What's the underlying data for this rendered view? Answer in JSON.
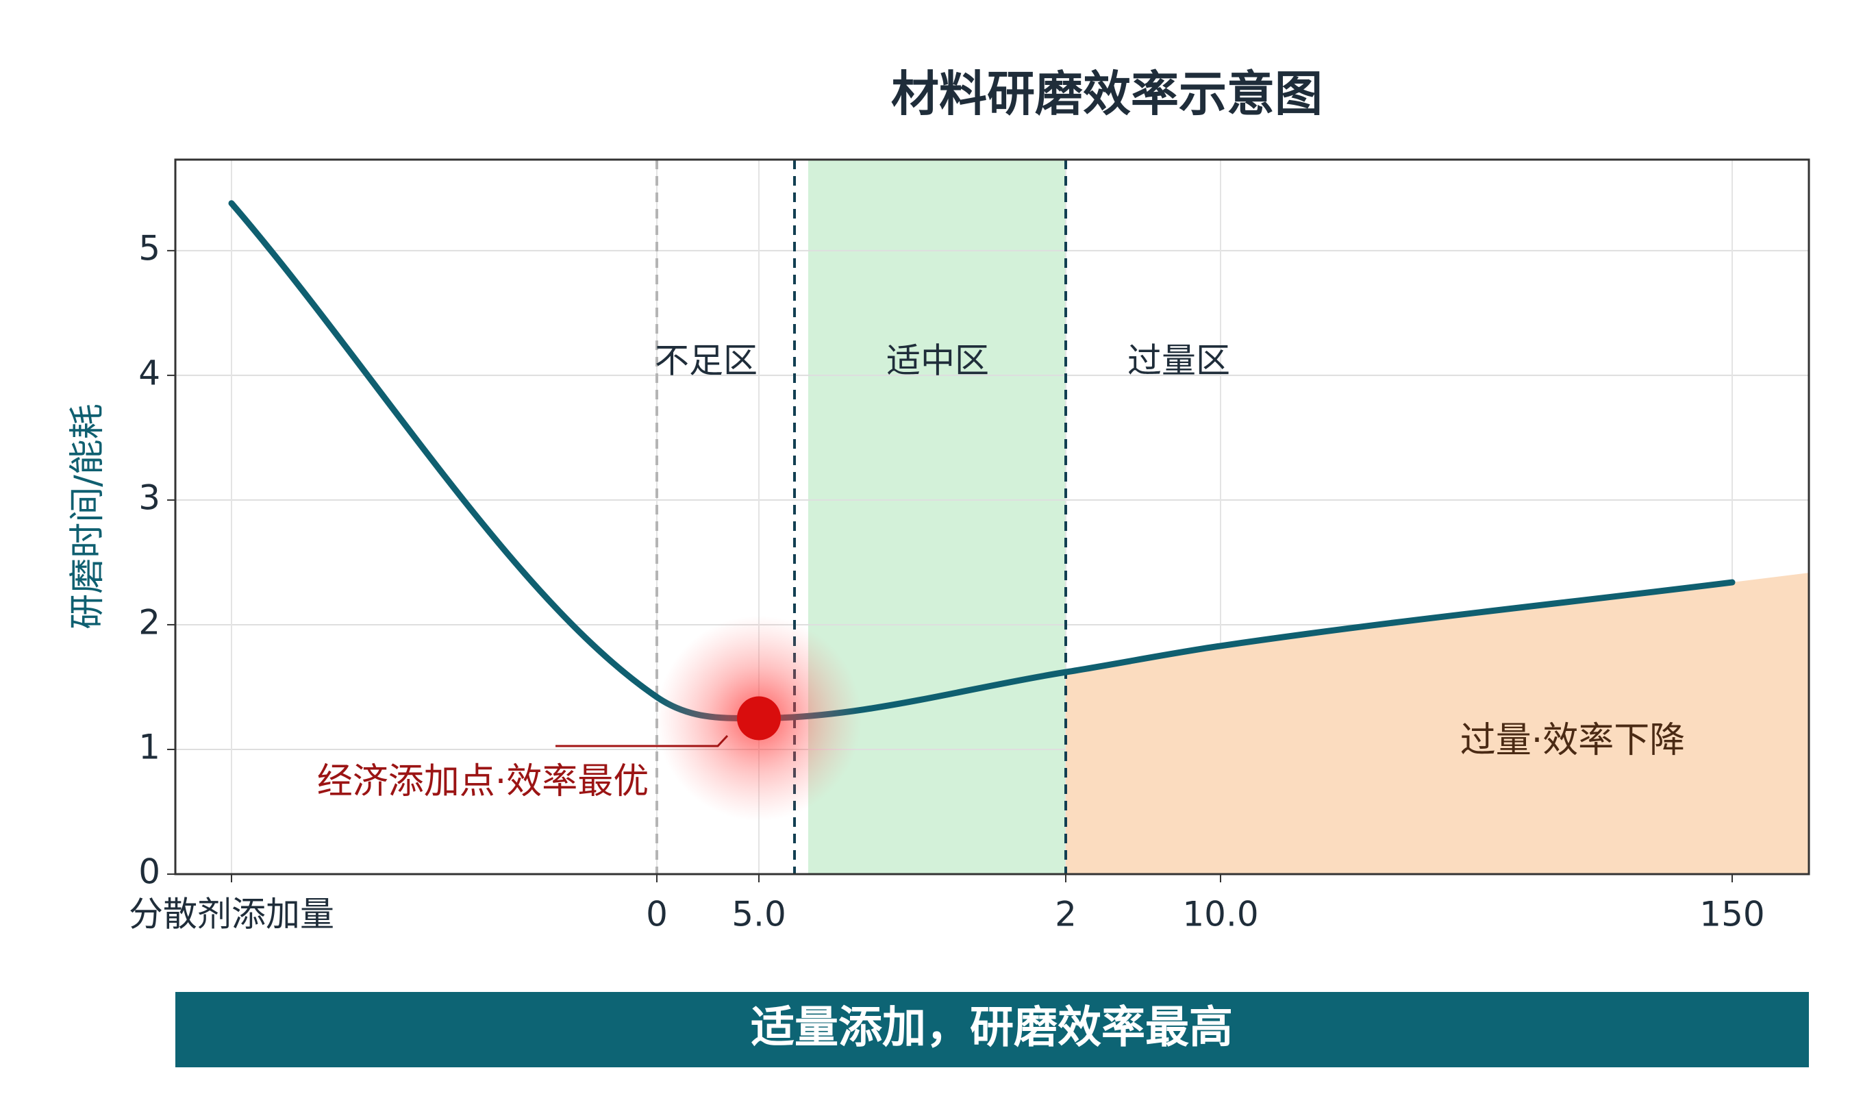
{
  "chart_data": {
    "type": "line",
    "title": "材料研磨效率示意图",
    "y_label": "研磨时间/能耗",
    "categories": [
      "分散剂添加量",
      "0",
      "5.0",
      "2",
      "10.0",
      "150"
    ],
    "series": [
      {
        "name": "研磨时间/能耗",
        "color": "#0f5f70",
        "values": [
          5.38,
          1.42,
          1.25,
          1.62,
          1.83,
          2.34
        ]
      }
    ],
    "ylim": [
      0,
      5.73
    ],
    "yticks": [
      0,
      1,
      2,
      3,
      4,
      5
    ],
    "grid": true,
    "zones": [
      "不足区",
      "适中区",
      "过量区"
    ],
    "optimum_label": "经济添加点·效率最优",
    "excess_label": "过量·效率下降",
    "banner": "适量添加，研磨效率最高"
  }
}
